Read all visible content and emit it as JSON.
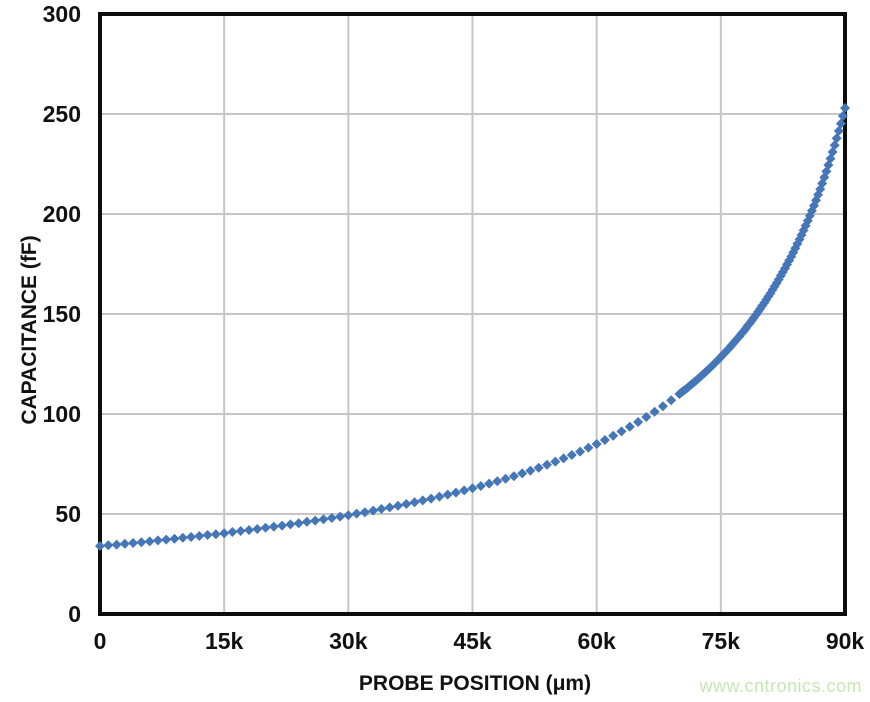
{
  "watermark": {
    "text": "www.cntronics.com",
    "color": "#c7e6b5"
  },
  "chart_data": {
    "type": "scatter",
    "title": "",
    "xlabel": "PROBE POSITION (μm)",
    "ylabel": "CAPACITANCE (fF)",
    "xlim": [
      0,
      90000
    ],
    "ylim": [
      0,
      300
    ],
    "grid": true,
    "grid_color": "#c6c6c6",
    "axis_color": "#0d0d0d",
    "marker": "diamond",
    "marker_color": "#4576b8",
    "legend": "none",
    "x_ticks": [
      {
        "value": 0,
        "label": "0"
      },
      {
        "value": 15000,
        "label": "15k"
      },
      {
        "value": 30000,
        "label": "30k"
      },
      {
        "value": 45000,
        "label": "45k"
      },
      {
        "value": 60000,
        "label": "60k"
      },
      {
        "value": 75000,
        "label": "75k"
      },
      {
        "value": 90000,
        "label": "90k"
      }
    ],
    "y_ticks": [
      {
        "value": 0,
        "label": "0"
      },
      {
        "value": 50,
        "label": "50"
      },
      {
        "value": 100,
        "label": "100"
      },
      {
        "value": 150,
        "label": "150"
      },
      {
        "value": 200,
        "label": "200"
      },
      {
        "value": 250,
        "label": "250"
      },
      {
        "value": 300,
        "label": "300"
      }
    ],
    "series": [
      {
        "name": "capacitance",
        "points": [
          [
            0,
            34.0
          ],
          [
            1000,
            34.4
          ],
          [
            2000,
            34.7
          ],
          [
            3000,
            35.1
          ],
          [
            4000,
            35.5
          ],
          [
            5000,
            35.9
          ],
          [
            6000,
            36.3
          ],
          [
            7000,
            36.8
          ],
          [
            8000,
            37.2
          ],
          [
            9000,
            37.6
          ],
          [
            10000,
            38.1
          ],
          [
            11000,
            38.5
          ],
          [
            12000,
            39.0
          ],
          [
            13000,
            39.5
          ],
          [
            14000,
            39.9
          ],
          [
            15000,
            40.4
          ],
          [
            16000,
            41.0
          ],
          [
            17000,
            41.5
          ],
          [
            18000,
            42.0
          ],
          [
            19000,
            42.5
          ],
          [
            20000,
            43.1
          ],
          [
            21000,
            43.7
          ],
          [
            22000,
            44.2
          ],
          [
            23000,
            44.8
          ],
          [
            24000,
            45.4
          ],
          [
            25000,
            46.1
          ],
          [
            26000,
            46.7
          ],
          [
            27000,
            47.4
          ],
          [
            28000,
            48.0
          ],
          [
            29000,
            48.7
          ],
          [
            30000,
            49.4
          ],
          [
            31000,
            50.2
          ],
          [
            32000,
            50.9
          ],
          [
            33000,
            51.7
          ],
          [
            34000,
            52.5
          ],
          [
            35000,
            53.3
          ],
          [
            36000,
            54.1
          ],
          [
            37000,
            55.0
          ],
          [
            38000,
            55.9
          ],
          [
            39000,
            56.8
          ],
          [
            40000,
            57.7
          ],
          [
            41000,
            58.7
          ],
          [
            42000,
            59.7
          ],
          [
            43000,
            60.7
          ],
          [
            44000,
            61.8
          ],
          [
            45000,
            62.9
          ],
          [
            46000,
            64.0
          ],
          [
            47000,
            65.2
          ],
          [
            48000,
            66.4
          ],
          [
            49000,
            67.6
          ],
          [
            50000,
            68.9
          ],
          [
            51000,
            70.3
          ],
          [
            52000,
            71.7
          ],
          [
            53000,
            73.1
          ],
          [
            54000,
            74.6
          ],
          [
            55000,
            76.2
          ],
          [
            56000,
            77.8
          ],
          [
            57000,
            79.5
          ],
          [
            58000,
            81.2
          ],
          [
            59000,
            83.1
          ],
          [
            60000,
            85.0
          ],
          [
            61000,
            87.0
          ],
          [
            62000,
            89.1
          ],
          [
            63000,
            91.3
          ],
          [
            64000,
            93.6
          ],
          [
            65000,
            96.0
          ],
          [
            66000,
            98.5
          ],
          [
            67000,
            101.1
          ],
          [
            68000,
            103.9
          ],
          [
            69000,
            106.9
          ],
          [
            70000,
            110.0
          ],
          [
            70250,
            110.8
          ],
          [
            70500,
            111.6
          ],
          [
            70750,
            112.4
          ],
          [
            71000,
            113.2
          ],
          [
            71250,
            114.1
          ],
          [
            71500,
            115.0
          ],
          [
            71750,
            115.8
          ],
          [
            72000,
            116.7
          ],
          [
            72250,
            117.6
          ],
          [
            72500,
            118.5
          ],
          [
            72750,
            119.5
          ],
          [
            73000,
            120.4
          ],
          [
            73250,
            121.4
          ],
          [
            73500,
            122.3
          ],
          [
            73750,
            123.3
          ],
          [
            74000,
            124.3
          ],
          [
            74250,
            125.3
          ],
          [
            74500,
            126.4
          ],
          [
            74750,
            127.4
          ],
          [
            75000,
            128.5
          ],
          [
            75250,
            129.6
          ],
          [
            75500,
            130.7
          ],
          [
            75750,
            131.8
          ],
          [
            76000,
            132.9
          ],
          [
            76250,
            134.1
          ],
          [
            76500,
            135.3
          ],
          [
            76750,
            136.5
          ],
          [
            77000,
            137.7
          ],
          [
            77250,
            138.9
          ],
          [
            77500,
            140.2
          ],
          [
            77750,
            141.4
          ],
          [
            78000,
            142.7
          ],
          [
            78250,
            144.1
          ],
          [
            78500,
            145.4
          ],
          [
            78750,
            146.8
          ],
          [
            79000,
            148.2
          ],
          [
            79250,
            149.6
          ],
          [
            79500,
            151.1
          ],
          [
            79750,
            152.6
          ],
          [
            80000,
            154.1
          ],
          [
            80250,
            155.6
          ],
          [
            80500,
            157.2
          ],
          [
            80750,
            158.8
          ],
          [
            81000,
            160.4
          ],
          [
            81250,
            162.1
          ],
          [
            81500,
            163.8
          ],
          [
            81750,
            165.5
          ],
          [
            82000,
            167.3
          ],
          [
            82250,
            169.1
          ],
          [
            82500,
            171.0
          ],
          [
            82750,
            172.8
          ],
          [
            83000,
            174.8
          ],
          [
            83250,
            176.7
          ],
          [
            83500,
            178.7
          ],
          [
            83750,
            180.8
          ],
          [
            84000,
            182.9
          ],
          [
            84250,
            185.1
          ],
          [
            84500,
            187.3
          ],
          [
            84750,
            189.5
          ],
          [
            85000,
            191.8
          ],
          [
            85250,
            194.2
          ],
          [
            85500,
            196.6
          ],
          [
            85750,
            199.1
          ],
          [
            86000,
            201.6
          ],
          [
            86250,
            204.2
          ],
          [
            86500,
            206.9
          ],
          [
            86750,
            209.6
          ],
          [
            87000,
            212.4
          ],
          [
            87250,
            215.3
          ],
          [
            87500,
            218.3
          ],
          [
            87750,
            221.3
          ],
          [
            88000,
            224.5
          ],
          [
            88250,
            227.7
          ],
          [
            88500,
            231.0
          ],
          [
            88750,
            234.4
          ],
          [
            89000,
            237.9
          ],
          [
            89250,
            241.5
          ],
          [
            89500,
            245.2
          ],
          [
            89750,
            249.0
          ],
          [
            90000,
            253.0
          ]
        ]
      }
    ]
  }
}
